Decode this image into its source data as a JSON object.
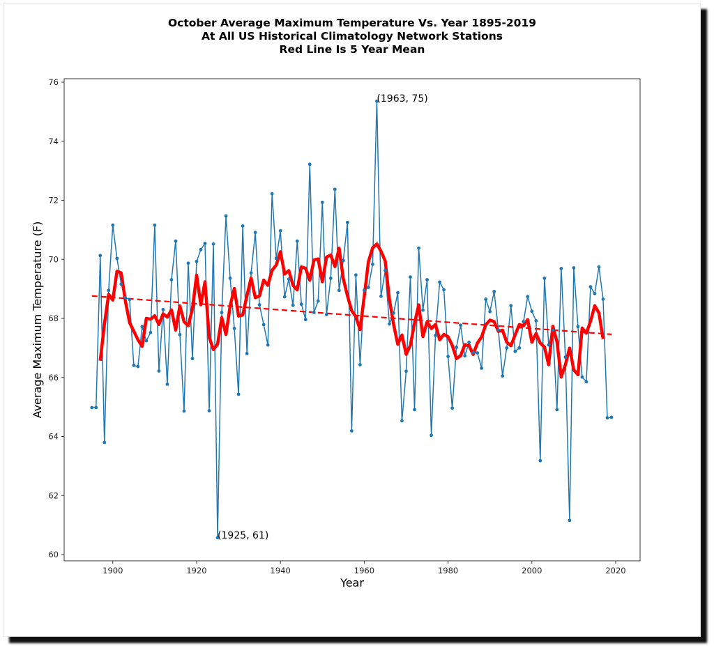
{
  "chart_data": {
    "type": "line",
    "title_lines": [
      "October Average Maximum Temperature Vs. Year 1895-2019",
      "At All US Historical Climatology Network Stations",
      "Red Line Is 5 Year Mean"
    ],
    "xlabel": "Year",
    "ylabel": "Average Maximum Temperature (F)",
    "xlim": [
      1889,
      2025
    ],
    "ylim": [
      59.8,
      76.2
    ],
    "xticks": [
      1900,
      1920,
      1940,
      1960,
      1980,
      2000,
      2020
    ],
    "yticks": [
      60,
      62,
      64,
      66,
      68,
      70,
      72,
      74,
      76
    ],
    "grid": false,
    "x": [
      1895,
      1896,
      1897,
      1898,
      1899,
      1900,
      1901,
      1902,
      1903,
      1904,
      1905,
      1906,
      1907,
      1908,
      1909,
      1910,
      1911,
      1912,
      1913,
      1914,
      1915,
      1916,
      1917,
      1918,
      1919,
      1920,
      1921,
      1922,
      1923,
      1924,
      1925,
      1926,
      1927,
      1928,
      1929,
      1930,
      1931,
      1932,
      1933,
      1934,
      1935,
      1936,
      1937,
      1938,
      1939,
      1940,
      1941,
      1942,
      1943,
      1944,
      1945,
      1946,
      1947,
      1948,
      1949,
      1950,
      1951,
      1952,
      1953,
      1954,
      1955,
      1956,
      1957,
      1958,
      1959,
      1960,
      1961,
      1962,
      1963,
      1964,
      1965,
      1966,
      1967,
      1968,
      1969,
      1970,
      1971,
      1972,
      1973,
      1974,
      1975,
      1976,
      1977,
      1978,
      1979,
      1980,
      1981,
      1982,
      1983,
      1984,
      1985,
      1986,
      1987,
      1988,
      1989,
      1990,
      1991,
      1992,
      1993,
      1994,
      1995,
      1996,
      1997,
      1998,
      1999,
      2000,
      2001,
      2002,
      2003,
      2004,
      2005,
      2006,
      2007,
      2008,
      2009,
      2010,
      2011,
      2012,
      2013,
      2014,
      2015,
      2016,
      2017,
      2018,
      2019
    ],
    "series": [
      {
        "name": "October average maximum temperature",
        "color": "#1f77b4",
        "style": "line-with-dots",
        "values": [
          64.98,
          64.98,
          70.13,
          63.8,
          68.95,
          71.16,
          70.03,
          69.16,
          68.7,
          68.64,
          66.41,
          66.37,
          67.72,
          67.24,
          67.52,
          71.16,
          66.22,
          68.3,
          65.77,
          69.31,
          70.62,
          67.45,
          64.86,
          69.87,
          66.64,
          69.93,
          70.33,
          70.54,
          64.87,
          70.52,
          60.57,
          68.2,
          71.47,
          69.36,
          67.66,
          65.43,
          71.13,
          66.81,
          69.54,
          70.91,
          68.46,
          67.79,
          67.1,
          72.22,
          70.03,
          70.97,
          68.73,
          69.33,
          68.44,
          70.62,
          68.48,
          67.96,
          73.22,
          68.2,
          68.59,
          71.93,
          68.13,
          69.36,
          72.37,
          68.95,
          69.96,
          71.25,
          64.19,
          69.47,
          66.43,
          68.95,
          69.05,
          69.83,
          75.36,
          68.75,
          69.62,
          67.81,
          68.18,
          68.87,
          64.53,
          66.21,
          69.4,
          64.91,
          70.38,
          68.28,
          69.31,
          64.04,
          67.42,
          69.23,
          68.97,
          66.71,
          64.96,
          67.02,
          67.77,
          66.73,
          67.19,
          66.84,
          66.83,
          66.31,
          68.65,
          68.23,
          68.91,
          67.61,
          66.05,
          67.0,
          68.43,
          66.88,
          67.0,
          67.89,
          68.74,
          68.24,
          67.92,
          63.18,
          69.36,
          67.1,
          67.6,
          64.91,
          69.69,
          66.69,
          61.16,
          69.71,
          67.72,
          66.01,
          65.85,
          69.07,
          68.84,
          69.74,
          68.65,
          64.63,
          64.65
        ]
      },
      {
        "name": "5 year mean",
        "color": "#ff0000",
        "style": "thick-line",
        "window": 5,
        "centered": true
      },
      {
        "name": "trend",
        "color": "#ff0000",
        "style": "dashed-line",
        "x": [
          1895,
          2019
        ],
        "values": [
          68.76,
          67.46
        ]
      }
    ],
    "annotations": [
      {
        "text": "(1963, 75)",
        "x": 1963,
        "y": 75.36
      },
      {
        "text": "(1925, 61)",
        "x": 1925,
        "y": 60.57
      }
    ]
  }
}
